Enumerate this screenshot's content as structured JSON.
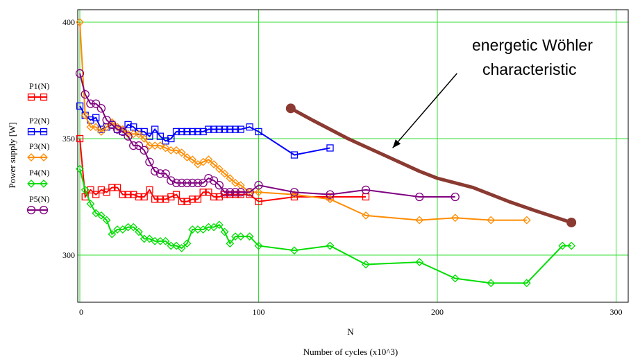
{
  "chart_data": {
    "type": "line",
    "xlabel": "N",
    "caption": "Number of cycles (x10^3)",
    "ylabel": "Power supply [W]",
    "xlim": [
      0,
      300
    ],
    "ylim": [
      280,
      405
    ],
    "xticks": [
      "0",
      "100",
      "200",
      "300"
    ],
    "yticks": [
      "300",
      "350",
      "400"
    ],
    "grid": true,
    "legend_position": "left",
    "series": [
      {
        "name": "P1(N)",
        "color": "#ff0000",
        "marker": "square",
        "x": [
          0,
          3,
          6,
          9,
          12,
          15,
          18,
          21,
          24,
          27,
          30,
          33,
          36,
          39,
          42,
          45,
          48,
          51,
          54,
          57,
          60,
          63,
          66,
          69,
          72,
          75,
          78,
          81,
          84,
          87,
          90,
          95,
          100,
          120,
          140,
          160
        ],
        "y": [
          350,
          325,
          328,
          326,
          328,
          327,
          329,
          329,
          326,
          326,
          326,
          325,
          325,
          328,
          324,
          324,
          324,
          325,
          326,
          323,
          323,
          324,
          324,
          327,
          327,
          325,
          325,
          326,
          326,
          326,
          326,
          326,
          323,
          325,
          325,
          325
        ]
      },
      {
        "name": "P2(N)",
        "color": "#0000ff",
        "marker": "square",
        "x": [
          0,
          3,
          6,
          9,
          12,
          15,
          18,
          21,
          24,
          27,
          30,
          33,
          36,
          39,
          42,
          45,
          48,
          51,
          54,
          57,
          60,
          63,
          66,
          69,
          72,
          75,
          78,
          81,
          84,
          87,
          90,
          95,
          100,
          120,
          140
        ],
        "y": [
          364,
          360,
          358,
          359,
          354,
          355,
          356,
          354,
          353,
          356,
          355,
          353,
          353,
          351,
          354,
          351,
          349,
          350,
          353,
          353,
          353,
          353,
          353,
          353,
          354,
          354,
          354,
          354,
          354,
          354,
          354,
          355,
          353,
          343,
          346
        ]
      },
      {
        "name": "P3(N)",
        "color": "#ff8c00",
        "marker": "diamond",
        "x": [
          0,
          3,
          6,
          9,
          12,
          15,
          18,
          21,
          24,
          27,
          30,
          33,
          36,
          39,
          42,
          45,
          48,
          51,
          54,
          57,
          60,
          63,
          66,
          69,
          72,
          75,
          78,
          81,
          84,
          87,
          90,
          95,
          100,
          120,
          140,
          160,
          190,
          210,
          230,
          250
        ],
        "y": [
          400,
          360,
          355,
          355,
          353,
          355,
          357,
          355,
          354,
          352,
          352,
          352,
          350,
          347,
          347,
          347,
          346,
          345,
          345,
          344,
          342,
          341,
          339,
          340,
          341,
          339,
          337,
          335,
          333,
          331,
          330,
          327,
          327,
          326,
          324,
          317,
          315,
          316,
          315,
          315
        ]
      },
      {
        "name": "P4(N)",
        "color": "#00dd00",
        "marker": "diamond",
        "x": [
          0,
          3,
          6,
          9,
          12,
          15,
          18,
          21,
          24,
          27,
          30,
          33,
          36,
          39,
          42,
          45,
          48,
          51,
          54,
          57,
          60,
          63,
          66,
          69,
          72,
          75,
          78,
          81,
          84,
          87,
          90,
          95,
          100,
          120,
          140,
          160,
          190,
          210,
          230,
          250,
          270,
          275
        ],
        "y": [
          337,
          328,
          322,
          318,
          317,
          315,
          309,
          311,
          311,
          312,
          312,
          310,
          307,
          307,
          306,
          306,
          306,
          304,
          304,
          303,
          305,
          311,
          311,
          311,
          312,
          312,
          313,
          310,
          305,
          308,
          308,
          308,
          304,
          302,
          304,
          296,
          297,
          290,
          288,
          288,
          304,
          304
        ]
      },
      {
        "name": "P5(N)",
        "color": "#800080",
        "marker": "circle",
        "x": [
          0,
          3,
          6,
          9,
          12,
          15,
          18,
          21,
          24,
          27,
          30,
          33,
          36,
          39,
          42,
          45,
          48,
          51,
          54,
          57,
          60,
          63,
          66,
          69,
          72,
          75,
          78,
          81,
          84,
          87,
          90,
          95,
          100,
          120,
          140,
          160,
          190,
          210
        ],
        "y": [
          378,
          369,
          365,
          365,
          363,
          358,
          356,
          354,
          353,
          351,
          347,
          347,
          345,
          340,
          336,
          335,
          335,
          332,
          331,
          331,
          331,
          331,
          331,
          331,
          333,
          332,
          330,
          327,
          327,
          327,
          327,
          327,
          330,
          327,
          326,
          328,
          325,
          325
        ]
      }
    ],
    "annotation": {
      "lines": [
        "energetic Wöhler",
        "characteristic"
      ],
      "curve_color": "#8b3a32",
      "curve_x": [
        118,
        130,
        150,
        170,
        190,
        200,
        220,
        240,
        255,
        275
      ],
      "curve_y": [
        363,
        358,
        350,
        343,
        336,
        333,
        329,
        323,
        319,
        314
      ],
      "arrow_from": [
        211,
        378
      ],
      "arrow_to": [
        175,
        346
      ]
    }
  }
}
